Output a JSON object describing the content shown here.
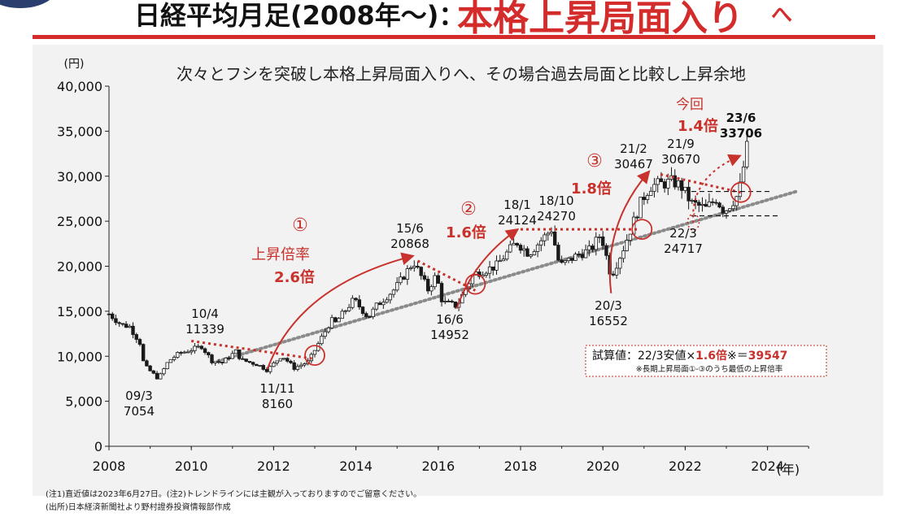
{
  "header": {
    "title_dark": "日経平均月足(2008年～)：",
    "title_red": "本格上昇局面入り",
    "title_tail": "へ"
  },
  "chart_data": {
    "type": "candlestick",
    "subtitle": "次々とフシを突破し本格上昇局面入りへ、その場合過去局面と比較し上昇余地",
    "y_unit": "(円)",
    "x_unit": "(年)",
    "ylim": [
      0,
      40000
    ],
    "xlim": [
      2008,
      2025
    ],
    "y_ticks": [
      "0",
      "5,000",
      "10,000",
      "15,000",
      "20,000",
      "25,000",
      "30,000",
      "35,000",
      "40,000"
    ],
    "y_tick_values": [
      0,
      5000,
      10000,
      15000,
      20000,
      25000,
      30000,
      35000,
      40000
    ],
    "x_ticks": [
      "2008",
      "2010",
      "2012",
      "2014",
      "2016",
      "2018",
      "2020",
      "2022",
      "2024"
    ],
    "x_tick_values": [
      2008,
      2010,
      2012,
      2014,
      2016,
      2018,
      2020,
      2022,
      2024
    ],
    "grid": false,
    "price_path": [
      [
        2008.0,
        14700
      ],
      [
        2008.3,
        13500
      ],
      [
        2008.5,
        13300
      ],
      [
        2008.75,
        11500
      ],
      [
        2008.85,
        9000
      ],
      [
        2009.2,
        7500
      ],
      [
        2009.45,
        9500
      ],
      [
        2009.7,
        10300
      ],
      [
        2010.25,
        11100
      ],
      [
        2010.5,
        9500
      ],
      [
        2010.75,
        9300
      ],
      [
        2011.1,
        10600
      ],
      [
        2011.2,
        9600
      ],
      [
        2011.6,
        9100
      ],
      [
        2011.85,
        8450
      ],
      [
        2012.2,
        10100
      ],
      [
        2012.5,
        8700
      ],
      [
        2012.85,
        9400
      ],
      [
        2013.05,
        11100
      ],
      [
        2013.4,
        14000
      ],
      [
        2013.5,
        13700
      ],
      [
        2013.95,
        16300
      ],
      [
        2014.3,
        14300
      ],
      [
        2014.5,
        15600
      ],
      [
        2014.95,
        17500
      ],
      [
        2015.4,
        20500
      ],
      [
        2015.75,
        17400
      ],
      [
        2015.95,
        19000
      ],
      [
        2016.1,
        16000
      ],
      [
        2016.45,
        15600
      ],
      [
        2016.85,
        19100
      ],
      [
        2017.4,
        20000
      ],
      [
        2017.9,
        22700
      ],
      [
        2018.2,
        21400
      ],
      [
        2018.75,
        24100
      ],
      [
        2018.95,
        20000
      ],
      [
        2019.4,
        21300
      ],
      [
        2019.7,
        21800
      ],
      [
        2019.95,
        23600
      ],
      [
        2020.2,
        18900
      ],
      [
        2020.5,
        22000
      ],
      [
        2020.95,
        27400
      ],
      [
        2021.15,
        28900
      ],
      [
        2021.7,
        29400
      ],
      [
        2021.9,
        28900
      ],
      [
        2022.15,
        27000
      ],
      [
        2022.5,
        26400
      ],
      [
        2022.75,
        27500
      ],
      [
        2022.95,
        26100
      ],
      [
        2023.3,
        28000
      ],
      [
        2023.5,
        33189
      ]
    ],
    "trendline": [
      [
        2008.0,
        5900
      ],
      [
        2024.7,
        28300
      ]
    ],
    "trendline_drawn_from": 2010.65,
    "resistance_lines": [
      {
        "from": [
          2010.0,
          11700
        ],
        "to": [
          2013.0,
          9700
        ]
      },
      {
        "from": [
          2015.5,
          20600
        ],
        "to": [
          2016.9,
          17300
        ]
      },
      {
        "from": [
          2018.0,
          24100
        ],
        "to": [
          2020.9,
          24100
        ]
      },
      {
        "from": [
          2021.4,
          30200
        ],
        "to": [
          2023.35,
          28200
        ]
      }
    ],
    "range_lines": [
      {
        "from": [
          2022.15,
          28300
        ],
        "to": [
          2024.1,
          28300
        ]
      },
      {
        "from": [
          2022.15,
          25600
        ],
        "to": [
          2024.3,
          25600
        ]
      }
    ],
    "circles": [
      [
        2013.0,
        10100
      ],
      [
        2016.9,
        18000
      ],
      [
        2020.95,
        24100
      ],
      [
        2023.35,
        28200
      ]
    ],
    "bottom_marker_circle": [
      2022.2,
      24900
    ],
    "rise_arrows": [
      {
        "from": [
          2011.85,
          8600
        ],
        "to": [
          2015.35,
          21100
        ],
        "mid": [
          2012.6,
          17800
        ]
      },
      {
        "from": [
          2016.45,
          15300
        ],
        "to": [
          2017.9,
          24000
        ],
        "mid": [
          2016.85,
          20600
        ]
      },
      {
        "from": [
          2020.2,
          17000
        ],
        "to": [
          2021.1,
          30400
        ],
        "mid": [
          2020.0,
          24500
        ]
      },
      {
        "from": [
          2022.2,
          24800
        ],
        "to": [
          2023.3,
          32200
        ],
        "mid": [
          2022.1,
          29800
        ]
      }
    ],
    "labels": {
      "date_0903": "09/3",
      "value_0903": "7054",
      "date_1004": "10/4",
      "value_1004": "11339",
      "date_1111": "11/11",
      "value_1111": "8160",
      "date_1506": "15/6",
      "value_1506": "20868",
      "date_1606": "16/6",
      "value_1606": "14952",
      "date_1801": "18/1",
      "value_1801": "24124",
      "date_1810": "18/10",
      "value_1810": "24270",
      "date_2003": "20/3",
      "value_2003": "16552",
      "date_2102": "21/2",
      "value_2102": "30467",
      "date_2109": "21/9",
      "value_2109": "30670",
      "date_2203": "22/3",
      "value_2203": "24717",
      "date_2306": "23/6",
      "value_2306": "33706"
    },
    "phases": {
      "p1_num": "①",
      "p1_text": "上昇倍率",
      "p1_mult": "2.6倍",
      "p2_num": "②",
      "p2_mult": "1.6倍",
      "p3_num": "③",
      "p3_mult": "1.8倍",
      "cur_text": "今回",
      "cur_mult": "1.4倍"
    },
    "calc_box": {
      "main_prefix": "試算値：22/3安値×",
      "main_mult": "1.6倍",
      "main_mark": "※＝",
      "main_value": "39547",
      "sub": "※長期上昇局面①-③のうち最低の上昇倍率"
    },
    "colors": {
      "red": "#c8312c",
      "candle": "#1a1a1a",
      "dotted_gray": "#8a8a8a",
      "panel": "#f2f2f2"
    }
  },
  "notes": {
    "note1": "(注1)直近値は2023年6月27日。(注2)トレンドラインには主観が入っておりますのでご留意ください。",
    "note2": "(出所)日本経済新聞社より野村證券投資情報部作成"
  }
}
